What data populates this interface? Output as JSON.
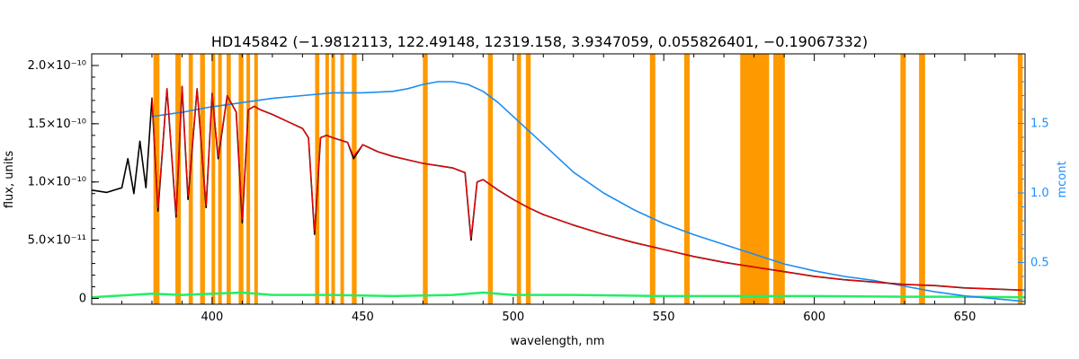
{
  "chart_data": {
    "type": "line",
    "title": "HD145842    (−1.9812113, 122.49148, 12319.158, 3.9347059, 0.055826401, −0.19067332)",
    "xlabel": "wavelength, nm",
    "ylabel": "flux, units",
    "y2label": "mcont",
    "xlim": [
      360,
      670
    ],
    "ylim": [
      -5e-12,
      2.1e-10
    ],
    "y2lim": [
      0.2,
      2.0
    ],
    "x_ticks": [
      400,
      450,
      500,
      550,
      600,
      650
    ],
    "x_tick_labels": [
      "400",
      "450",
      "500",
      "550",
      "600",
      "650"
    ],
    "y_ticks": [
      0,
      5e-11,
      1e-10,
      1.5e-10,
      2e-10
    ],
    "y_tick_labels": [
      "0",
      "5.0×10⁻¹¹",
      "1.0×10⁻¹⁰",
      "1.5×10⁻¹⁰",
      "2.0×10⁻¹⁰"
    ],
    "y2_ticks": [
      0.5,
      1.0,
      1.5
    ],
    "y2_tick_labels": [
      "0.5",
      "1.0",
      "1.5"
    ],
    "grid": false,
    "colors": {
      "observed": "#000000",
      "model": "#ff0000",
      "model_alt": "#ffd000",
      "residual": "#22ee66",
      "mcont": "#1e8cf0",
      "mask": "#ff9900",
      "axis_right": "#1e90ff"
    },
    "mask_bands": [
      [
        380.5,
        382.5
      ],
      [
        387.8,
        389.6
      ],
      [
        392.2,
        393.6
      ],
      [
        396.0,
        397.6
      ],
      [
        399.8,
        401.0
      ],
      [
        402.0,
        403.2
      ],
      [
        404.8,
        406.2
      ],
      [
        408.8,
        410.4
      ],
      [
        411.4,
        412.6
      ],
      [
        414.0,
        415.2
      ],
      [
        434.2,
        435.6
      ],
      [
        437.6,
        438.8
      ],
      [
        439.6,
        440.8
      ],
      [
        442.6,
        443.8
      ],
      [
        446.4,
        448.0
      ],
      [
        470.0,
        471.6
      ],
      [
        491.6,
        493.2
      ],
      [
        501.2,
        502.6
      ],
      [
        504.2,
        505.8
      ],
      [
        545.4,
        547.2
      ],
      [
        556.8,
        558.6
      ],
      [
        575.4,
        585.0
      ],
      [
        586.4,
        590.2
      ],
      [
        628.6,
        630.4
      ],
      [
        634.8,
        636.8
      ],
      [
        667.6,
        669.2
      ]
    ],
    "observed": {
      "x": [
        360,
        365,
        370,
        372,
        374,
        376,
        378,
        380,
        382,
        385,
        388,
        390,
        392,
        395,
        398,
        400,
        402,
        405,
        408,
        410,
        412,
        414,
        416,
        420,
        425,
        430,
        432,
        434,
        436,
        438,
        440,
        445,
        447,
        450,
        455,
        460,
        465,
        470,
        475,
        480,
        484,
        486,
        488,
        490,
        495,
        500,
        505,
        510,
        520,
        530,
        540,
        550,
        560,
        570,
        580,
        590,
        600,
        610,
        620,
        630,
        640,
        650,
        660,
        670
      ],
      "y": [
        9.3e-11,
        9.1e-11,
        9.5e-11,
        1.2e-10,
        9e-11,
        1.35e-10,
        9.5e-11,
        1.72e-10,
        7.5e-11,
        1.8e-10,
        7e-11,
        1.82e-10,
        8.5e-11,
        1.8e-10,
        7.8e-11,
        1.76e-10,
        1.2e-10,
        1.74e-10,
        1.6e-10,
        6.5e-11,
        1.62e-10,
        1.65e-10,
        1.62e-10,
        1.58e-10,
        1.52e-10,
        1.46e-10,
        1.38e-10,
        5.5e-11,
        1.38e-10,
        1.4e-10,
        1.38e-10,
        1.34e-10,
        1.2e-10,
        1.32e-10,
        1.26e-10,
        1.22e-10,
        1.19e-10,
        1.16e-10,
        1.14e-10,
        1.12e-10,
        1.08e-10,
        5e-11,
        1e-10,
        1.02e-10,
        9.3e-11,
        8.5e-11,
        7.8e-11,
        7.2e-11,
        6.3e-11,
        5.5e-11,
        4.8e-11,
        4.2e-11,
        3.6e-11,
        3.1e-11,
        2.7e-11,
        2.3e-11,
        1.9e-11,
        1.6e-11,
        1.4e-11,
        1.2e-11,
        1.1e-11,
        9e-12,
        8e-12,
        7e-12
      ]
    },
    "model": {
      "x": [
        380,
        382,
        385,
        388,
        390,
        392,
        395,
        398,
        400,
        402,
        405,
        408,
        410,
        412,
        414,
        416,
        420,
        425,
        430,
        432,
        434,
        436,
        438,
        440,
        445,
        447,
        450,
        455,
        460,
        465,
        470,
        475,
        480,
        484,
        486,
        488,
        490,
        495,
        500,
        505,
        510,
        520,
        530,
        540,
        550,
        560,
        570,
        580,
        590,
        600,
        610,
        620,
        630,
        640,
        650,
        660,
        670
      ],
      "y": [
        1.72e-10,
        7.8e-11,
        1.8e-10,
        7.2e-11,
        1.82e-10,
        8.8e-11,
        1.8e-10,
        8e-11,
        1.76e-10,
        1.22e-10,
        1.74e-10,
        1.6e-10,
        6.8e-11,
        1.62e-10,
        1.65e-10,
        1.62e-10,
        1.58e-10,
        1.52e-10,
        1.46e-10,
        1.38e-10,
        5.8e-11,
        1.38e-10,
        1.4e-10,
        1.38e-10,
        1.34e-10,
        1.22e-10,
        1.32e-10,
        1.26e-10,
        1.22e-10,
        1.19e-10,
        1.16e-10,
        1.14e-10,
        1.12e-10,
        1.08e-10,
        5.2e-11,
        1e-10,
        1.02e-10,
        9.3e-11,
        8.5e-11,
        7.8e-11,
        7.2e-11,
        6.3e-11,
        5.5e-11,
        4.8e-11,
        4.2e-11,
        3.6e-11,
        3.1e-11,
        2.7e-11,
        2.3e-11,
        1.9e-11,
        1.6e-11,
        1.4e-11,
        1.2e-11,
        1.1e-11,
        9e-12,
        8e-12,
        7e-12
      ]
    },
    "residual": {
      "x": [
        360,
        380,
        390,
        400,
        410,
        420,
        440,
        460,
        480,
        490,
        500,
        520,
        550,
        580,
        600,
        630,
        650,
        670
      ],
      "y": [
        1e-12,
        4e-12,
        3e-12,
        4e-12,
        5e-12,
        3e-12,
        3e-12,
        2e-12,
        3e-12,
        5e-12,
        3e-12,
        3e-12,
        2e-12,
        2e-12,
        2e-12,
        1.5e-12,
        1.5e-12,
        1e-12
      ]
    },
    "mcont": {
      "x": [
        380,
        390,
        400,
        410,
        420,
        430,
        440,
        450,
        460,
        465,
        470,
        475,
        480,
        485,
        490,
        495,
        500,
        510,
        520,
        530,
        540,
        550,
        560,
        570,
        580,
        590,
        600,
        610,
        620,
        630,
        640,
        650,
        660,
        670
      ],
      "y": [
        1.55,
        1.58,
        1.62,
        1.65,
        1.68,
        1.7,
        1.72,
        1.72,
        1.73,
        1.75,
        1.78,
        1.8,
        1.8,
        1.78,
        1.73,
        1.65,
        1.55,
        1.35,
        1.15,
        1.0,
        0.88,
        0.78,
        0.7,
        0.63,
        0.56,
        0.49,
        0.44,
        0.4,
        0.37,
        0.33,
        0.29,
        0.26,
        0.24,
        0.22
      ]
    }
  }
}
